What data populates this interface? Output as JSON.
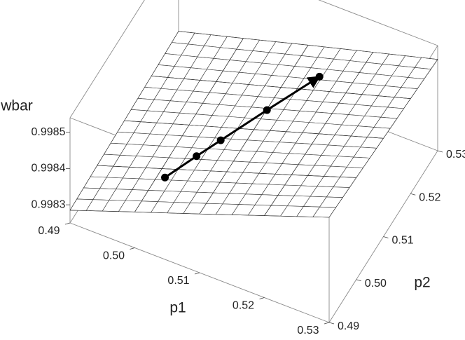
{
  "chart_data": {
    "type": "surface",
    "xlabel": "p1",
    "ylabel": "p2",
    "zlabel": "wbar",
    "x": [
      0.49,
      0.5,
      0.51,
      0.52,
      0.53
    ],
    "y": [
      0.49,
      0.5,
      0.51,
      0.52,
      0.53
    ],
    "z": [
      [
        0.998285,
        0.99829,
        0.998295,
        0.9983,
        0.998305
      ],
      [
        0.998349,
        0.99835,
        0.998352,
        0.998353,
        0.998354
      ],
      [
        0.998412,
        0.99841,
        0.998408,
        0.998406,
        0.998404
      ],
      [
        0.998476,
        0.99847,
        0.998465,
        0.998459,
        0.998453
      ],
      [
        0.99854,
        0.998531,
        0.998521,
        0.998512,
        0.998502
      ]
    ],
    "xlim": [
      0.49,
      0.53
    ],
    "ylim": [
      0.49,
      0.53
    ],
    "zlim": [
      0.99825,
      0.99854
    ],
    "xticks": [
      0.49,
      {
        "value": 0.5,
        "label": "0.50"
      },
      0.51,
      0.52,
      0.53
    ],
    "yticks": [
      0.49,
      {
        "value": 0.5,
        "label": "0.50"
      },
      0.51,
      0.52,
      0.53
    ],
    "zticks": [
      0.9983,
      0.9984,
      0.9985
    ],
    "surface_color": "#ffffff",
    "mesh_color": "#333333",
    "box_color": "#8a8a8a",
    "path": {
      "p1": [
        0.5013,
        0.504,
        0.5061,
        0.5101,
        0.5146
      ],
      "p2": [
        0.498,
        0.5032,
        0.5071,
        0.5146,
        0.5232
      ],
      "wbar": [
        0.998358,
        0.998374,
        0.998386,
        0.998408,
        0.998429
      ],
      "color": "#000000"
    }
  }
}
